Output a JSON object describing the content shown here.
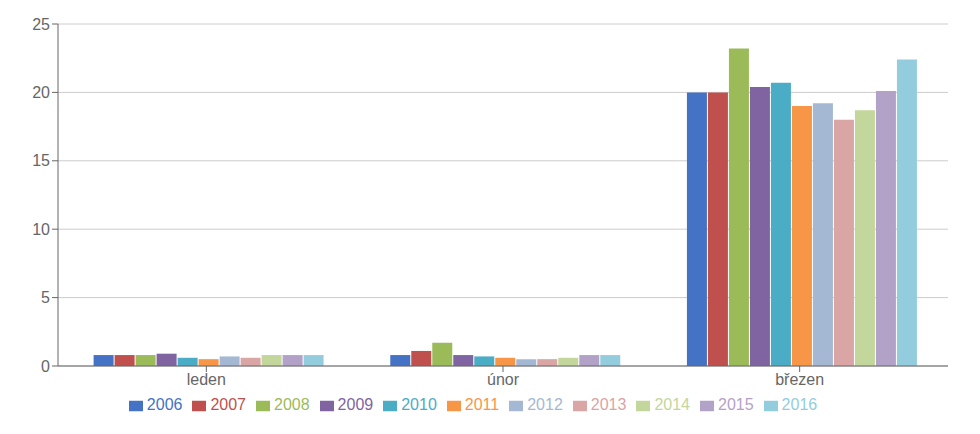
{
  "chart_data": {
    "type": "bar",
    "categories": [
      "leden",
      "únor",
      "březen"
    ],
    "series": [
      {
        "name": "2006",
        "color": "#4472C4",
        "values": [
          0.8,
          0.8,
          20.0
        ]
      },
      {
        "name": "2007",
        "color": "#C0504D",
        "values": [
          0.8,
          1.1,
          20.0
        ]
      },
      {
        "name": "2008",
        "color": "#9BBB59",
        "values": [
          0.8,
          1.7,
          23.2
        ]
      },
      {
        "name": "2009",
        "color": "#8064A2",
        "values": [
          0.9,
          0.8,
          20.4
        ]
      },
      {
        "name": "2010",
        "color": "#4BACC6",
        "values": [
          0.6,
          0.7,
          20.7
        ]
      },
      {
        "name": "2011",
        "color": "#F79646",
        "values": [
          0.5,
          0.6,
          19.0
        ]
      },
      {
        "name": "2012",
        "color": "#A5B8D3",
        "values": [
          0.7,
          0.5,
          19.2
        ]
      },
      {
        "name": "2013",
        "color": "#D9A5A5",
        "values": [
          0.6,
          0.5,
          18.0
        ]
      },
      {
        "name": "2014",
        "color": "#C3D69B",
        "values": [
          0.8,
          0.6,
          18.7
        ]
      },
      {
        "name": "2015",
        "color": "#B3A2C7",
        "values": [
          0.8,
          0.8,
          20.1
        ]
      },
      {
        "name": "2016",
        "color": "#93CDDD",
        "values": [
          0.8,
          0.8,
          22.4
        ]
      }
    ],
    "ylim": [
      0,
      25
    ],
    "yticks": [
      0,
      5,
      10,
      15,
      20,
      25
    ],
    "grid": true,
    "legend": "bottom"
  }
}
